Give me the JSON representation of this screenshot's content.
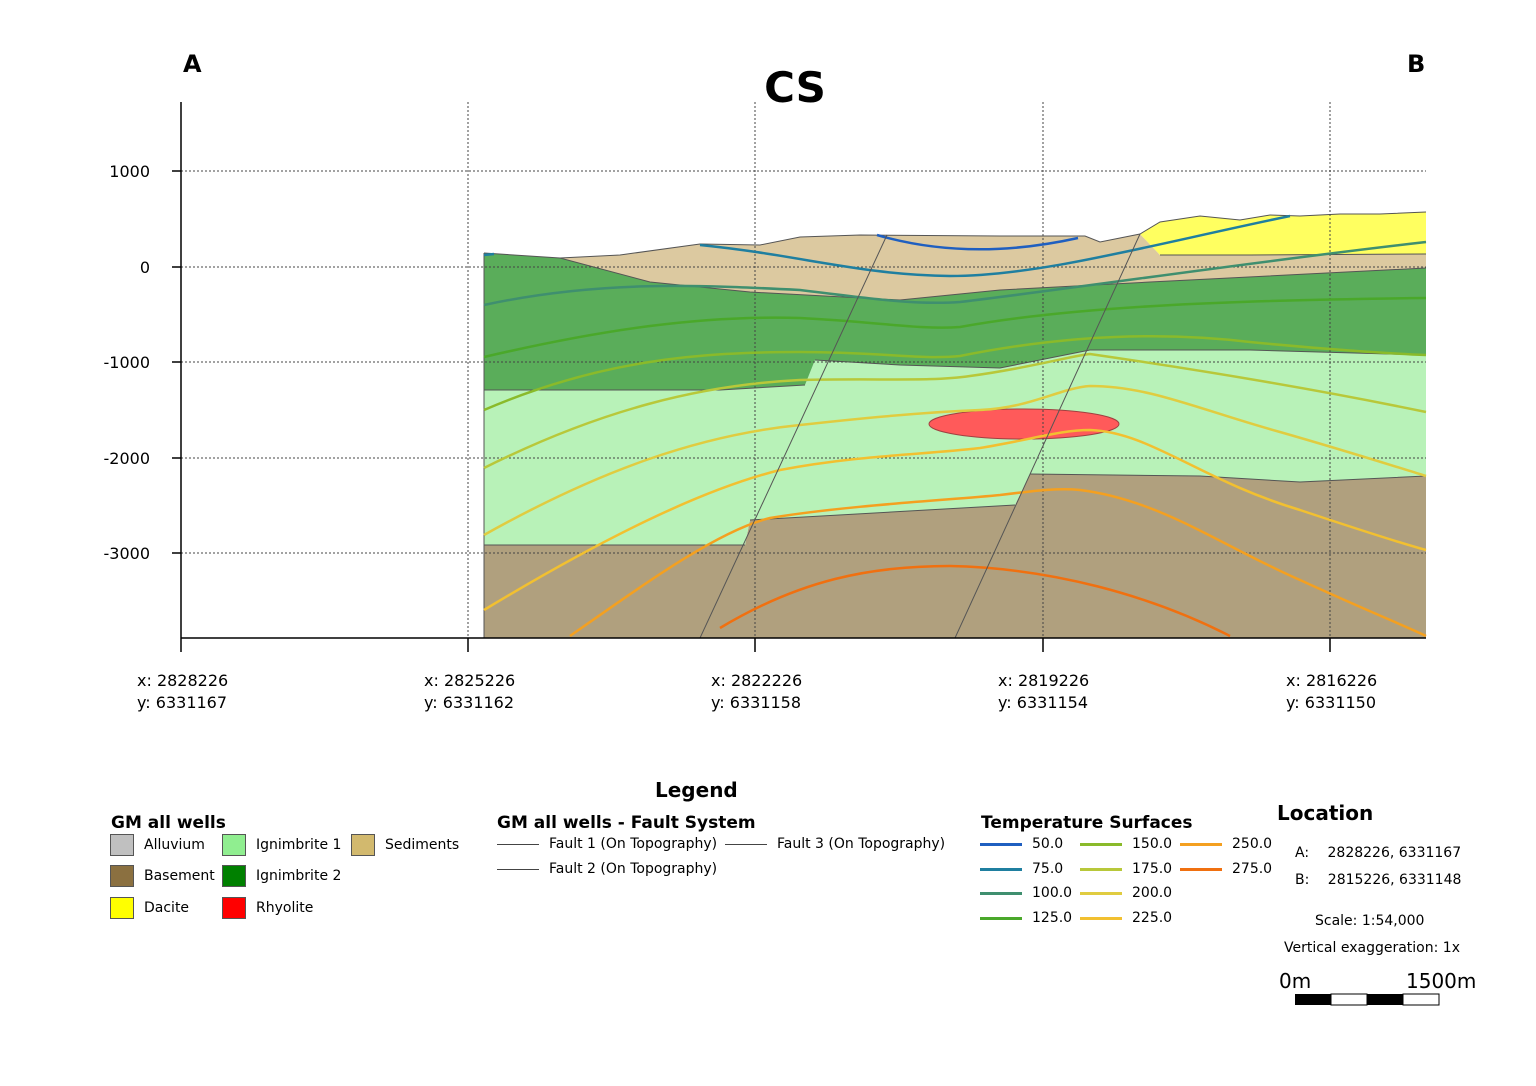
{
  "title": "CS",
  "end_labels": {
    "left": "A",
    "right": "B"
  },
  "y_axis_ticks": [
    "1000",
    "0",
    "-1000",
    "-2000",
    "-3000"
  ],
  "x_axis_ticks": [
    {
      "x": "x: 2828226",
      "y": "y: 6331167"
    },
    {
      "x": "x: 2825226",
      "y": "y: 6331162"
    },
    {
      "x": "x: 2822226",
      "y": "y: 6331158"
    },
    {
      "x": "x: 2819226",
      "y": "y: 6331154"
    },
    {
      "x": "x: 2816226",
      "y": "y: 6331150"
    }
  ],
  "legend": {
    "title": "Legend",
    "units": {
      "title": "GM all wells",
      "items": [
        {
          "label": "Alluvium",
          "color": "#c0c0c0"
        },
        {
          "label": "Basement",
          "color": "#8b7040"
        },
        {
          "label": "Dacite",
          "color": "#ffff00"
        },
        {
          "label": "Ignimbrite 1",
          "color": "#90ee90"
        },
        {
          "label": "Ignimbrite 2",
          "color": "#008000"
        },
        {
          "label": "Rhyolite",
          "color": "#ff0000"
        },
        {
          "label": "Sediments",
          "color": "#d2b96e"
        }
      ]
    },
    "faults": {
      "title": "GM all wells - Fault System",
      "items": [
        "Fault 1 (On Topography)",
        "Fault 3 (On Topography)",
        "Fault 2 (On Topography)"
      ]
    },
    "temperature": {
      "title": "Temperature Surfaces",
      "items": [
        {
          "label": "50.0",
          "color": "#1f5fc0"
        },
        {
          "label": "75.0",
          "color": "#1f7fa0"
        },
        {
          "label": "100.0",
          "color": "#3f8f6f"
        },
        {
          "label": "125.0",
          "color": "#4aa82a"
        },
        {
          "label": "150.0",
          "color": "#8aba2a"
        },
        {
          "label": "175.0",
          "color": "#b8c83a"
        },
        {
          "label": "200.0",
          "color": "#e0cc40"
        },
        {
          "label": "225.0",
          "color": "#f2c030"
        },
        {
          "label": "250.0",
          "color": "#f4a020"
        },
        {
          "label": "275.0",
          "color": "#f07010"
        }
      ]
    }
  },
  "location": {
    "title": "Location",
    "a_label": "A:",
    "a_coords": "2828226, 6331167",
    "b_label": "B:",
    "b_coords": "2815226, 6331148",
    "scale": "Scale: 1:54,000",
    "exaggeration": "Vertical exaggeration: 1x",
    "bar_start": "0m",
    "bar_end": "1500m"
  },
  "colors": {
    "sediments": "#dcc9a0",
    "ignimbrite2": "#5aad5a",
    "ignimbrite1": "#b8f2b8",
    "basement": "#b0a07e",
    "dacite": "#ffff60",
    "rhyolite": "#ff5a5a"
  }
}
